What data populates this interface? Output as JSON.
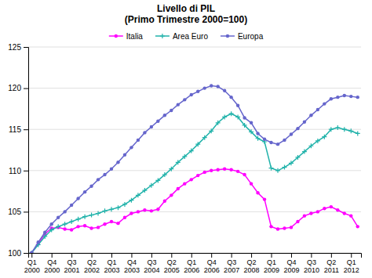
{
  "chart_data": {
    "type": "line",
    "title": "Livello di PIL",
    "subtitle": "(Primo Trimestre 2000=100)",
    "categories": [
      "Q1\n2000",
      null,
      null,
      "Q4\n2000",
      null,
      null,
      "Q3\n2001",
      null,
      null,
      "Q2\n2002",
      null,
      null,
      "Q1\n2003",
      null,
      null,
      "Q4\n2003",
      null,
      null,
      "Q3\n2004",
      null,
      null,
      "Q2\n2005",
      null,
      null,
      "Q1\n2006",
      null,
      null,
      "Q4\n2006",
      null,
      null,
      "Q3\n2007",
      null,
      null,
      "Q2\n2008",
      null,
      null,
      "Q1\n2009",
      null,
      null,
      "Q4\n2009",
      null,
      null,
      "Q3\n2010",
      null,
      null,
      "Q2\n2011",
      null,
      null,
      "Q1\n2012",
      null
    ],
    "series": [
      {
        "name": "Italia",
        "color": "#ff00ff",
        "marker": "circle",
        "line_style": "solid",
        "values": [
          100.0,
          101.1,
          102.3,
          103.0,
          103.1,
          102.9,
          102.8,
          103.2,
          103.3,
          103.0,
          103.1,
          103.5,
          103.8,
          103.6,
          104.3,
          104.8,
          105.0,
          105.2,
          105.1,
          105.3,
          106.3,
          107.0,
          107.8,
          108.4,
          108.9,
          109.4,
          109.8,
          110.0,
          110.1,
          110.2,
          110.1,
          109.9,
          109.5,
          108.4,
          107.3,
          106.5,
          103.2,
          102.9,
          103.0,
          103.1,
          103.8,
          104.5,
          104.8,
          105.0,
          105.4,
          105.6,
          105.2,
          104.8,
          104.5,
          103.2
        ]
      },
      {
        "name": "Area Euro",
        "color": "#20b2aa",
        "marker": "plus",
        "line_style": "solid",
        "values": [
          100.0,
          101.0,
          102.0,
          102.8,
          103.2,
          103.5,
          103.8,
          104.1,
          104.4,
          104.6,
          104.8,
          105.1,
          105.3,
          105.5,
          105.9,
          106.4,
          107.0,
          107.6,
          108.2,
          108.8,
          109.5,
          110.2,
          111.0,
          111.7,
          112.4,
          113.2,
          114.0,
          114.8,
          115.8,
          116.5,
          116.9,
          116.5,
          115.5,
          114.7,
          113.9,
          113.5,
          110.3,
          110.0,
          110.4,
          110.9,
          111.6,
          112.3,
          113.0,
          113.6,
          114.1,
          115.0,
          115.2,
          115.0,
          114.8,
          114.5
        ]
      },
      {
        "name": "Europa",
        "color": "#6666cc",
        "marker": "circle",
        "line_style": "solid",
        "values": [
          100.0,
          101.3,
          102.5,
          103.5,
          104.3,
          105.0,
          105.8,
          106.6,
          107.4,
          108.1,
          108.9,
          109.5,
          110.2,
          111.0,
          111.9,
          112.8,
          113.7,
          114.6,
          115.3,
          116.0,
          116.7,
          117.3,
          118.0,
          118.6,
          119.2,
          119.6,
          120.0,
          120.3,
          120.2,
          119.7,
          118.9,
          117.9,
          116.4,
          115.8,
          114.5,
          113.8,
          113.4,
          113.2,
          113.7,
          114.4,
          115.1,
          115.9,
          116.7,
          117.4,
          118.1,
          118.7,
          118.9,
          119.1,
          119.0,
          118.9
        ]
      }
    ],
    "ylim": [
      100,
      125
    ],
    "yticks": [
      100,
      105,
      110,
      115,
      120,
      125
    ],
    "grid": "y",
    "legend": "top"
  }
}
